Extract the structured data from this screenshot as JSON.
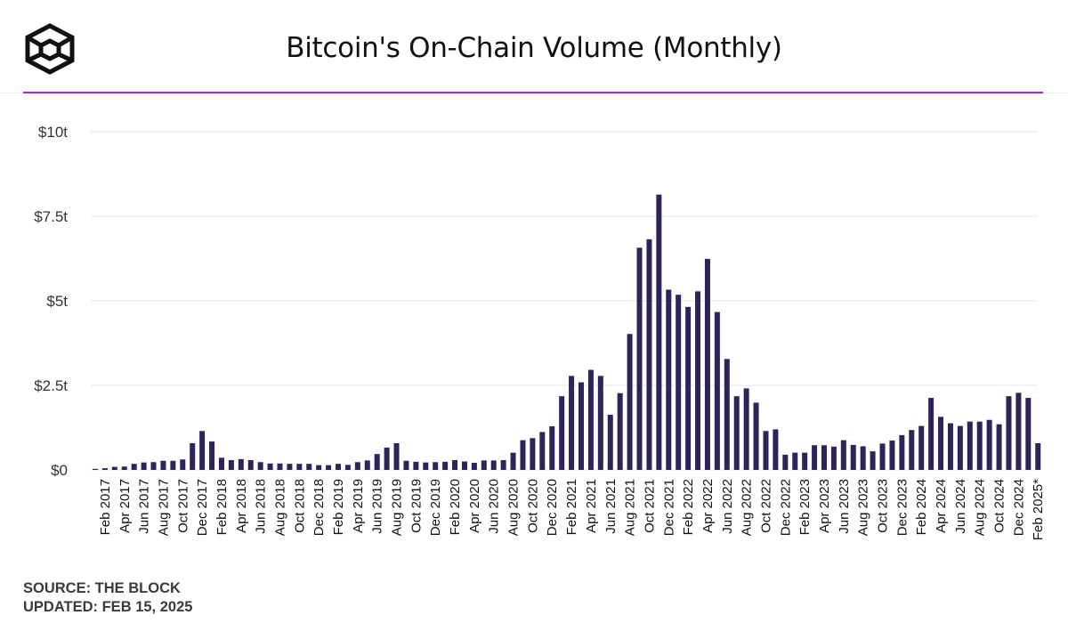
{
  "title": "Bitcoin's On-Chain Volume (Monthly)",
  "logo": "the-block-cube-logo",
  "colors": {
    "bar": "#2b2559",
    "accent": "#9b30d0",
    "grid": "#e6e6e6",
    "text": "#111111"
  },
  "source_line": "SOURCE: THE BLOCK",
  "updated_line": "UPDATED: FEB 15, 2025",
  "chart_data": {
    "type": "bar",
    "title": "Bitcoin's On-Chain Volume (Monthly)",
    "xlabel": "",
    "ylabel": "",
    "ylim": [
      0,
      10
    ],
    "unit": "trillion USD",
    "yticks": [
      {
        "value": 0,
        "label": "$0"
      },
      {
        "value": 2.5,
        "label": "$2.5t"
      },
      {
        "value": 5,
        "label": "$5t"
      },
      {
        "value": 7.5,
        "label": "$7.5t"
      },
      {
        "value": 10,
        "label": "$10t"
      }
    ],
    "grid": true,
    "categories": [
      "Jan 2017",
      "Feb 2017",
      "Mar 2017",
      "Apr 2017",
      "May 2017",
      "Jun 2017",
      "Jul 2017",
      "Aug 2017",
      "Sep 2017",
      "Oct 2017",
      "Nov 2017",
      "Dec 2017",
      "Jan 2018",
      "Feb 2018",
      "Mar 2018",
      "Apr 2018",
      "May 2018",
      "Jun 2018",
      "Jul 2018",
      "Aug 2018",
      "Sep 2018",
      "Oct 2018",
      "Nov 2018",
      "Dec 2018",
      "Jan 2019",
      "Feb 2019",
      "Mar 2019",
      "Apr 2019",
      "May 2019",
      "Jun 2019",
      "Jul 2019",
      "Aug 2019",
      "Sep 2019",
      "Oct 2019",
      "Nov 2019",
      "Dec 2019",
      "Jan 2020",
      "Feb 2020",
      "Mar 2020",
      "Apr 2020",
      "May 2020",
      "Jun 2020",
      "Jul 2020",
      "Aug 2020",
      "Sep 2020",
      "Oct 2020",
      "Nov 2020",
      "Dec 2020",
      "Jan 2021",
      "Feb 2021",
      "Mar 2021",
      "Apr 2021",
      "May 2021",
      "Jun 2021",
      "Jul 2021",
      "Aug 2021",
      "Sep 2021",
      "Oct 2021",
      "Nov 2021",
      "Dec 2021",
      "Jan 2022",
      "Feb 2022",
      "Mar 2022",
      "Apr 2022",
      "May 2022",
      "Jun 2022",
      "Jul 2022",
      "Aug 2022",
      "Sep 2022",
      "Oct 2022",
      "Nov 2022",
      "Dec 2022",
      "Jan 2023",
      "Feb 2023",
      "Mar 2023",
      "Apr 2023",
      "May 2023",
      "Jun 2023",
      "Jul 2023",
      "Aug 2023",
      "Sep 2023",
      "Oct 2023",
      "Nov 2023",
      "Dec 2023",
      "Jan 2024",
      "Feb 2024",
      "Mar 2024",
      "Apr 2024",
      "May 2024",
      "Jun 2024",
      "Jul 2024",
      "Aug 2024",
      "Sep 2024",
      "Oct 2024",
      "Nov 2024",
      "Dec 2024",
      "Jan 2025",
      "Feb 2025*"
    ],
    "tick_labels": [
      "Feb 2017",
      "Apr 2017",
      "Jun 2017",
      "Aug 2017",
      "Oct 2017",
      "Dec 2017",
      "Feb 2018",
      "Apr 2018",
      "Jun 2018",
      "Aug 2018",
      "Oct 2018",
      "Dec 2018",
      "Feb 2019",
      "Apr 2019",
      "Jun 2019",
      "Aug 2019",
      "Oct 2019",
      "Dec 2019",
      "Feb 2020",
      "Apr 2020",
      "Jun 2020",
      "Aug 2020",
      "Oct 2020",
      "Dec 2020",
      "Feb 2021",
      "Apr 2021",
      "Jun 2021",
      "Aug 2021",
      "Oct 2021",
      "Dec 2021",
      "Feb 2022",
      "Apr 2022",
      "Jun 2022",
      "Aug 2022",
      "Oct 2022",
      "Dec 2022",
      "Feb 2023",
      "Apr 2023",
      "Jun 2023",
      "Aug 2023",
      "Oct 2023",
      "Dec 2023",
      "Feb 2024",
      "Apr 2024",
      "Jun 2024",
      "Aug 2024",
      "Oct 2024",
      "Dec 2024",
      "Feb 2025*"
    ],
    "series": [
      {
        "name": "On-Chain Volume",
        "values": [
          0.03,
          0.05,
          0.09,
          0.1,
          0.18,
          0.22,
          0.23,
          0.27,
          0.27,
          0.31,
          0.79,
          1.15,
          0.84,
          0.36,
          0.29,
          0.32,
          0.29,
          0.23,
          0.19,
          0.19,
          0.18,
          0.18,
          0.18,
          0.14,
          0.14,
          0.18,
          0.15,
          0.23,
          0.28,
          0.47,
          0.66,
          0.79,
          0.27,
          0.24,
          0.22,
          0.23,
          0.24,
          0.29,
          0.25,
          0.21,
          0.28,
          0.28,
          0.29,
          0.51,
          0.88,
          0.94,
          1.12,
          1.29,
          2.18,
          2.78,
          2.59,
          2.96,
          2.78,
          1.63,
          2.27,
          4.02,
          6.57,
          6.82,
          8.14,
          5.33,
          5.18,
          4.82,
          5.28,
          6.24,
          4.67,
          3.28,
          2.18,
          2.41,
          1.99,
          1.15,
          1.2,
          0.45,
          0.51,
          0.51,
          0.73,
          0.73,
          0.69,
          0.88,
          0.74,
          0.7,
          0.55,
          0.78,
          0.87,
          1.03,
          1.18,
          1.3,
          2.13,
          1.57,
          1.38,
          1.3,
          1.43,
          1.43,
          1.48,
          1.35,
          2.18,
          2.28,
          2.13,
          0.79
        ]
      }
    ]
  }
}
